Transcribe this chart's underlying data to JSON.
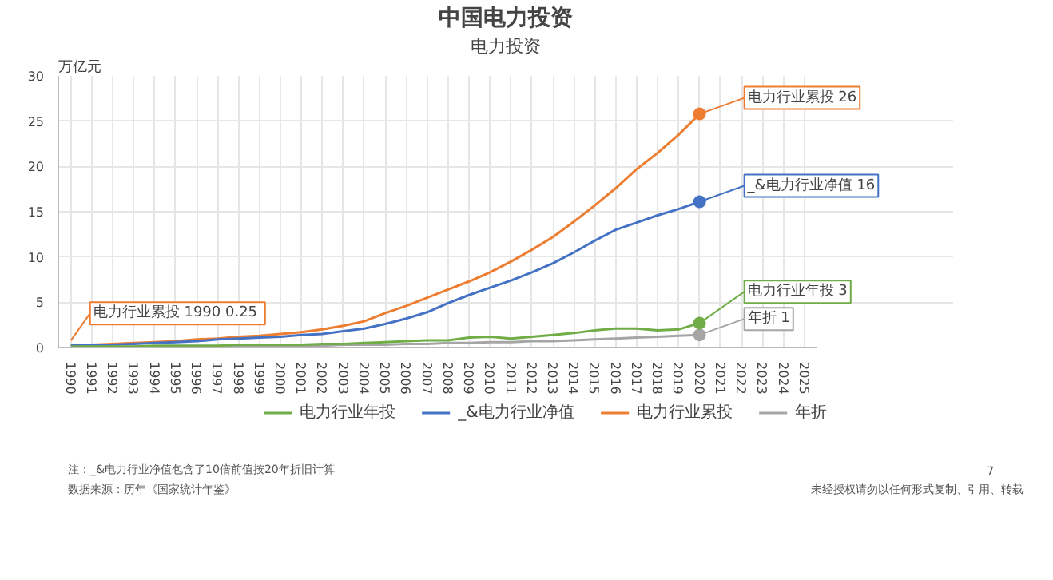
{
  "chart_data": {
    "type": "line",
    "title": "中国电力投资",
    "subtitle": "电力投资",
    "ylabel": "万亿元",
    "categories": [
      "1990",
      "1991",
      "1992",
      "1993",
      "1994",
      "1995",
      "1996",
      "1997",
      "1998",
      "1999",
      "2000",
      "2001",
      "2002",
      "2003",
      "2004",
      "2005",
      "2006",
      "2007",
      "2008",
      "2009",
      "2010",
      "2011",
      "2012",
      "2013",
      "2014",
      "2015",
      "2016",
      "2017",
      "2018",
      "2019",
      "2020",
      "2021",
      "2022",
      "2023",
      "2024",
      "2025"
    ],
    "series": [
      {
        "name": "电力行业年投",
        "color": "#70ad47",
        "values": [
          0.1,
          0.1,
          0.1,
          0.1,
          0.2,
          0.2,
          0.2,
          0.2,
          0.3,
          0.3,
          0.3,
          0.3,
          0.4,
          0.4,
          0.5,
          0.6,
          0.7,
          0.8,
          0.8,
          1.1,
          1.2,
          1.0,
          1.2,
          1.4,
          1.6,
          1.9,
          2.1,
          2.1,
          1.9,
          2.0,
          2.7,
          null,
          null,
          null,
          null,
          null
        ]
      },
      {
        "name": "_&电力行业净值",
        "color": "#4472c4",
        "values": [
          0.2,
          0.3,
          0.3,
          0.4,
          0.5,
          0.6,
          0.7,
          0.9,
          1.0,
          1.1,
          1.2,
          1.4,
          1.5,
          1.8,
          2.1,
          2.6,
          3.2,
          3.9,
          4.9,
          5.8,
          6.6,
          7.4,
          8.3,
          9.3,
          10.5,
          11.8,
          13.0,
          13.8,
          14.6,
          15.3,
          16.1,
          null,
          null,
          null,
          null,
          null
        ]
      },
      {
        "name": "电力行业累投",
        "color": "#ed7d31",
        "values": [
          0.25,
          0.3,
          0.4,
          0.5,
          0.6,
          0.7,
          0.9,
          1.0,
          1.2,
          1.3,
          1.5,
          1.7,
          2.0,
          2.4,
          2.9,
          3.8,
          4.6,
          5.5,
          6.4,
          7.3,
          8.3,
          9.5,
          10.8,
          12.2,
          13.9,
          15.7,
          17.6,
          19.7,
          21.5,
          23.5,
          25.8,
          null,
          null,
          null,
          null,
          null
        ]
      },
      {
        "name": "年折",
        "color": "#a5a5a5",
        "values": [
          0.0,
          0.0,
          0.0,
          0.1,
          0.1,
          0.1,
          0.1,
          0.1,
          0.1,
          0.2,
          0.2,
          0.2,
          0.2,
          0.3,
          0.3,
          0.3,
          0.4,
          0.4,
          0.5,
          0.5,
          0.6,
          0.6,
          0.7,
          0.7,
          0.8,
          0.9,
          1.0,
          1.1,
          1.2,
          1.3,
          1.4,
          null,
          null,
          null,
          null,
          null
        ]
      }
    ],
    "ylim": [
      0,
      30
    ],
    "yticks": [
      0,
      5,
      10,
      15,
      20,
      25,
      30
    ],
    "grid": true,
    "legend": "bottom",
    "line_style": "solid",
    "annotations": [
      {
        "text": "电力行业累投 1990  0.25",
        "x": "1990",
        "y": 0.25
      },
      {
        "text": "电力行业累投 26",
        "x": "2020",
        "y": 25.8
      },
      {
        "text": "_&电力行业净值 16",
        "x": "2020",
        "y": 16.1
      },
      {
        "text": "电力行业年投 3",
        "x": "2020",
        "y": 2.7
      },
      {
        "text": "年折 1",
        "x": "2020",
        "y": 1.4
      },
      "注：_&电力行业净值包含了10倍前值按20年折旧计算",
      "数据来源：历年《国家统计年鉴》",
      "未经授权请勿以任何形式复制、引用、转载",
      "7"
    ]
  }
}
